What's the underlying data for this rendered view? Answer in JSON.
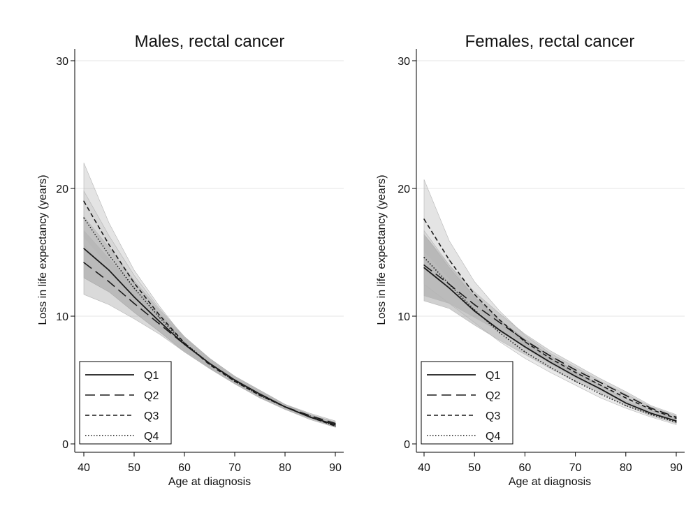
{
  "chart_data": [
    {
      "type": "line",
      "title": "Males, rectal cancer",
      "xlabel": "Age at diagnosis",
      "ylabel": "Loss in life expectancy (years)",
      "xlim": [
        40,
        90
      ],
      "ylim": [
        0,
        30
      ],
      "xticks": [
        "40",
        "50",
        "60",
        "70",
        "80",
        "90"
      ],
      "yticks": [
        "0",
        "10",
        "20",
        "30"
      ],
      "grid": "horizontal",
      "legend_position": "bottom-left",
      "x": [
        40,
        45,
        50,
        55,
        60,
        65,
        70,
        75,
        80,
        85,
        90
      ],
      "series": [
        {
          "name": "Q1",
          "style": "solid",
          "values": [
            15.3,
            13.6,
            11.5,
            9.6,
            7.8,
            6.3,
            5.0,
            3.9,
            2.9,
            2.1,
            1.5
          ],
          "lower": [
            13.0,
            11.9,
            10.3,
            8.8,
            7.2,
            5.9,
            4.7,
            3.6,
            2.7,
            1.9,
            1.3
          ],
          "upper": [
            17.8,
            15.4,
            12.8,
            10.5,
            8.4,
            6.7,
            5.3,
            4.2,
            3.1,
            2.3,
            1.7
          ]
        },
        {
          "name": "Q2",
          "style": "longdash",
          "values": [
            14.2,
            12.7,
            11.0,
            9.4,
            7.8,
            6.3,
            5.0,
            3.9,
            2.9,
            2.2,
            1.6
          ],
          "lower": [
            11.7,
            10.9,
            9.8,
            8.6,
            7.2,
            5.9,
            4.7,
            3.6,
            2.7,
            2.0,
            1.4
          ],
          "upper": [
            16.7,
            14.5,
            12.2,
            10.2,
            8.4,
            6.7,
            5.3,
            4.2,
            3.1,
            2.4,
            1.8
          ]
        },
        {
          "name": "Q3",
          "style": "shortdash",
          "values": [
            19.0,
            15.6,
            12.6,
            10.1,
            7.9,
            6.2,
            4.9,
            3.8,
            2.9,
            2.1,
            1.4
          ],
          "lower": [
            16.2,
            13.9,
            11.6,
            9.4,
            7.5,
            5.9,
            4.7,
            3.6,
            2.7,
            2.0,
            1.3
          ],
          "upper": [
            22.0,
            17.3,
            13.6,
            10.8,
            8.3,
            6.5,
            5.1,
            4.0,
            3.1,
            2.2,
            1.5
          ]
        },
        {
          "name": "Q4",
          "style": "dotted",
          "values": [
            17.7,
            14.8,
            12.2,
            9.9,
            7.9,
            6.3,
            4.9,
            3.8,
            2.9,
            2.1,
            1.4
          ],
          "lower": [
            15.6,
            13.3,
            11.2,
            9.2,
            7.4,
            6.0,
            4.7,
            3.6,
            2.7,
            2.0,
            1.3
          ],
          "upper": [
            19.8,
            16.3,
            13.2,
            10.6,
            8.4,
            6.6,
            5.1,
            4.0,
            3.1,
            2.2,
            1.5
          ]
        }
      ]
    },
    {
      "type": "line",
      "title": "Females, rectal cancer",
      "xlabel": "Age at diagnosis",
      "ylabel": "Loss in life expectancy (years)",
      "xlim": [
        40,
        90
      ],
      "ylim": [
        0,
        30
      ],
      "xticks": [
        "40",
        "50",
        "60",
        "70",
        "80",
        "90"
      ],
      "yticks": [
        "0",
        "10",
        "20",
        "30"
      ],
      "grid": "horizontal",
      "legend_position": "bottom-left",
      "x": [
        40,
        45,
        50,
        55,
        60,
        65,
        70,
        75,
        80,
        85,
        90
      ],
      "series": [
        {
          "name": "Q1",
          "style": "solid",
          "values": [
            13.8,
            12.2,
            10.4,
            8.9,
            7.6,
            6.4,
            5.3,
            4.3,
            3.2,
            2.4,
            1.8
          ],
          "lower": [
            11.2,
            10.6,
            9.3,
            8.1,
            7.0,
            5.9,
            4.9,
            4.0,
            3.0,
            2.2,
            1.6
          ],
          "upper": [
            16.4,
            13.8,
            11.5,
            9.7,
            8.2,
            6.9,
            5.7,
            4.6,
            3.4,
            2.6,
            2.0
          ]
        },
        {
          "name": "Q2",
          "style": "longdash",
          "values": [
            14.0,
            12.5,
            10.9,
            9.5,
            8.1,
            6.9,
            5.8,
            4.8,
            3.8,
            2.8,
            2.1
          ],
          "lower": [
            11.6,
            11.0,
            9.9,
            8.8,
            7.6,
            6.5,
            5.4,
            4.5,
            3.5,
            2.6,
            1.9
          ],
          "upper": [
            16.4,
            14.0,
            11.9,
            10.2,
            8.6,
            7.3,
            6.2,
            5.1,
            4.1,
            3.0,
            2.3
          ]
        },
        {
          "name": "Q3",
          "style": "shortdash",
          "values": [
            17.6,
            14.4,
            11.7,
            9.7,
            8.0,
            6.7,
            5.6,
            4.6,
            3.6,
            2.7,
            2.0
          ],
          "lower": [
            15.1,
            12.9,
            10.7,
            9.0,
            7.5,
            6.3,
            5.2,
            4.3,
            3.3,
            2.5,
            1.8
          ],
          "upper": [
            20.7,
            15.9,
            12.7,
            10.4,
            8.5,
            7.1,
            6.0,
            4.9,
            3.9,
            2.9,
            2.2
          ]
        },
        {
          "name": "Q4",
          "style": "dotted",
          "values": [
            14.6,
            12.5,
            10.5,
            8.7,
            7.2,
            6.0,
            4.9,
            3.9,
            3.0,
            2.3,
            1.7
          ],
          "lower": [
            12.5,
            11.0,
            9.5,
            8.0,
            6.7,
            5.6,
            4.6,
            3.6,
            2.8,
            2.1,
            1.5
          ],
          "upper": [
            16.7,
            14.0,
            11.5,
            9.4,
            7.7,
            6.4,
            5.2,
            4.2,
            3.2,
            2.5,
            1.9
          ]
        }
      ]
    }
  ]
}
